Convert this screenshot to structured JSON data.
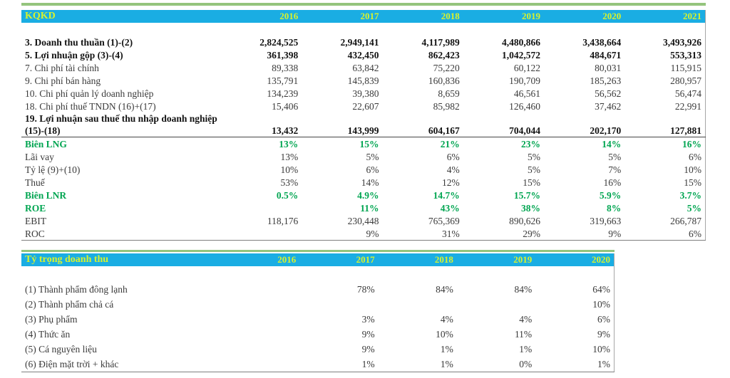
{
  "colors": {
    "header_bg": "#1aade3",
    "header_text": "#d8f22d",
    "green_row_text": "#00a551",
    "top_accent_line": "#94c47d"
  },
  "table1": {
    "title": "KQKD",
    "years": [
      "2016",
      "2017",
      "2018",
      "2019",
      "2020",
      "2021"
    ],
    "rows": [
      {
        "label": "3. Doanh thu thuần (1)-(2)",
        "style": "bold",
        "values": [
          "2,824,525",
          "2,949,141",
          "4,117,989",
          "4,480,866",
          "3,438,664",
          "3,493,926"
        ]
      },
      {
        "label": "5. Lợi nhuận gộp (3)-(4)",
        "style": "bold",
        "values": [
          "361,398",
          "432,450",
          "862,423",
          "1,042,572",
          "484,671",
          "553,313"
        ]
      },
      {
        "label": "7. Chi phí tài chính",
        "style": "normal",
        "values": [
          "89,338",
          "63,842",
          "75,220",
          "60,122",
          "80,031",
          "115,915"
        ]
      },
      {
        "label": "9. Chi phí bán hàng",
        "style": "normal",
        "values": [
          "135,791",
          "145,839",
          "160,836",
          "190,709",
          "185,263",
          "280,957"
        ]
      },
      {
        "label": "10. Chi phí quản lý doanh nghiệp",
        "style": "normal",
        "values": [
          "134,239",
          "39,380",
          "8,659",
          "46,561",
          "56,562",
          "56,474"
        ]
      },
      {
        "label": "18. Chi phí thuế TNDN (16)+(17)",
        "style": "normal",
        "values": [
          "15,406",
          "22,607",
          "85,982",
          "126,460",
          "37,462",
          "22,991"
        ]
      },
      {
        "label": "19. Lợi nhuận sau thuế thu nhập doanh nghiệp\n(15)-(18)",
        "style": "bold",
        "underline": true,
        "values": [
          "13,432",
          "143,999",
          "604,167",
          "704,044",
          "202,170",
          "127,881"
        ]
      },
      {
        "label": "Biên LNG",
        "style": "green",
        "values": [
          "13%",
          "15%",
          "21%",
          "23%",
          "14%",
          "16%"
        ]
      },
      {
        "label": "Lãi vay",
        "style": "normal",
        "values": [
          "13%",
          "5%",
          "6%",
          "5%",
          "5%",
          "6%"
        ]
      },
      {
        "label": "Tỷ lệ (9)+(10)",
        "style": "normal",
        "values": [
          "10%",
          "6%",
          "4%",
          "5%",
          "7%",
          "10%"
        ]
      },
      {
        "label": "Thuế",
        "style": "normal",
        "values": [
          "53%",
          "14%",
          "12%",
          "15%",
          "16%",
          "15%"
        ]
      },
      {
        "label": "Biên LNR",
        "style": "green",
        "values": [
          "0.5%",
          "4.9%",
          "14.7%",
          "15.7%",
          "5.9%",
          "3.7%"
        ]
      },
      {
        "label": "ROE",
        "style": "green",
        "values": [
          "",
          "11%",
          "43%",
          "38%",
          "8%",
          "5%"
        ]
      },
      {
        "label": "EBIT",
        "style": "normal",
        "values": [
          "118,176",
          "230,448",
          "765,369",
          "890,626",
          "319,663",
          "266,787"
        ]
      },
      {
        "label": "ROC",
        "style": "normal",
        "values": [
          "",
          "9%",
          "31%",
          "29%",
          "9%",
          "6%"
        ]
      }
    ]
  },
  "table2": {
    "title": "Tỷ trọng doanh thu",
    "years": [
      "2016",
      "2017",
      "2018",
      "2019",
      "2020"
    ],
    "rows": [
      {
        "label": "(1) Thành phẩm đông lạnh",
        "style": "normal",
        "values": [
          "",
          "78%",
          "84%",
          "84%",
          "64%"
        ]
      },
      {
        "label": "(2) Thành phẩm chả cá",
        "style": "normal",
        "values": [
          "",
          "",
          "",
          "",
          "10%"
        ]
      },
      {
        "label": "(3) Phụ phẩm",
        "style": "normal",
        "values": [
          "",
          "3%",
          "4%",
          "4%",
          "6%"
        ]
      },
      {
        "label": "(4) Thức ăn",
        "style": "normal",
        "values": [
          "",
          "9%",
          "10%",
          "11%",
          "9%"
        ]
      },
      {
        "label": "(5) Cá nguyên liệu",
        "style": "normal",
        "values": [
          "",
          "9%",
          "1%",
          "1%",
          "10%"
        ]
      },
      {
        "label": "(6) Điện mặt trời + khác",
        "style": "normal",
        "values": [
          "",
          "1%",
          "1%",
          "0%",
          "1%"
        ]
      }
    ]
  }
}
